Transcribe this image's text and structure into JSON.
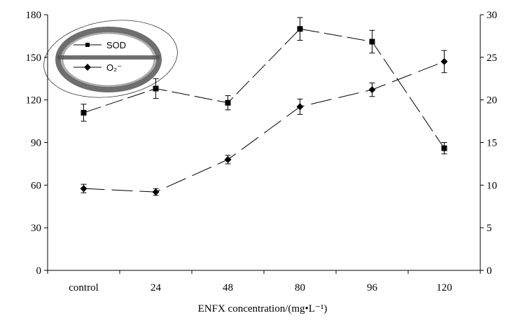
{
  "chart_data": {
    "type": "line",
    "categories": [
      "control",
      "24",
      "48",
      "80",
      "96",
      "120"
    ],
    "xlabel": "ENFX concentration/(mg•L⁻¹)",
    "ylabel_left": "",
    "ylabel_right": "",
    "ylim_left": [
      0,
      180
    ],
    "yticks_left": [
      0,
      30,
      60,
      90,
      120,
      150,
      180
    ],
    "ylim_right": [
      0,
      30
    ],
    "yticks_right": [
      0,
      5,
      10,
      15,
      20,
      25,
      30
    ],
    "grid": false,
    "legend_position": "top-left",
    "series": [
      {
        "name": "SOD",
        "axis": "left",
        "marker": "square",
        "values": [
          111,
          128,
          118,
          170,
          161,
          86
        ],
        "errors": [
          6,
          7,
          5,
          8,
          8,
          4
        ]
      },
      {
        "name": "O₂⁻",
        "axis": "right",
        "marker": "diamond",
        "values": [
          9.6,
          9.2,
          13.0,
          19.2,
          21.2,
          24.5
        ],
        "errors": [
          0.5,
          0.4,
          0.5,
          0.9,
          0.8,
          1.3
        ]
      }
    ]
  }
}
